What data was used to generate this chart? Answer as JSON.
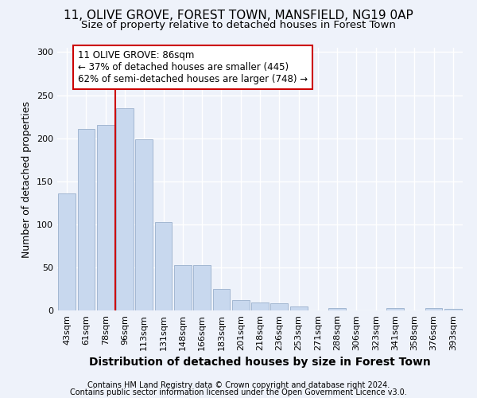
{
  "title_line1": "11, OLIVE GROVE, FOREST TOWN, MANSFIELD, NG19 0AP",
  "title_line2": "Size of property relative to detached houses in Forest Town",
  "xlabel": "Distribution of detached houses by size in Forest Town",
  "ylabel": "Number of detached properties",
  "categories": [
    "43sqm",
    "61sqm",
    "78sqm",
    "96sqm",
    "113sqm",
    "131sqm",
    "148sqm",
    "166sqm",
    "183sqm",
    "201sqm",
    "218sqm",
    "236sqm",
    "253sqm",
    "271sqm",
    "288sqm",
    "306sqm",
    "323sqm",
    "341sqm",
    "358sqm",
    "376sqm",
    "393sqm"
  ],
  "values": [
    136,
    211,
    215,
    235,
    199,
    103,
    53,
    53,
    25,
    12,
    9,
    8,
    5,
    0,
    3,
    0,
    0,
    3,
    0,
    3,
    2
  ],
  "bar_color": "#c8d8ee",
  "bar_edge_color": "#9ab0cc",
  "vline_color": "#cc0000",
  "vline_x_index": 2.5,
  "annotation_text": "11 OLIVE GROVE: 86sqm\n← 37% of detached houses are smaller (445)\n62% of semi-detached houses are larger (748) →",
  "annotation_box_color": "#ffffff",
  "annotation_box_edge": "#cc0000",
  "footnote1": "Contains HM Land Registry data © Crown copyright and database right 2024.",
  "footnote2": "Contains public sector information licensed under the Open Government Licence v3.0.",
  "ylim": [
    0,
    305
  ],
  "background_color": "#eef2fa",
  "grid_color": "#ffffff",
  "title_fontsize": 11,
  "subtitle_fontsize": 9.5,
  "ylabel_fontsize": 9,
  "xlabel_fontsize": 10,
  "tick_fontsize": 8,
  "annotation_fontsize": 8.5,
  "footnote_fontsize": 7
}
